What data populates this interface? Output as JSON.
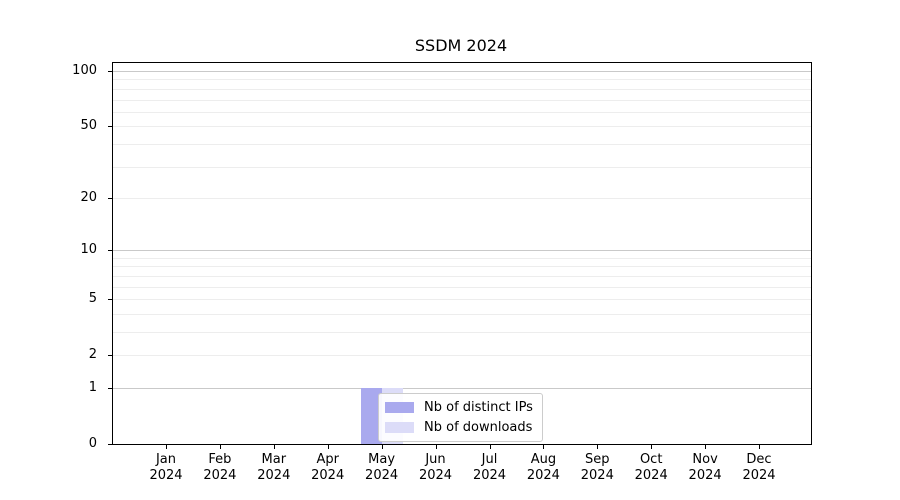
{
  "figure": {
    "title": "SSDM 2024"
  },
  "chart_data": {
    "type": "bar",
    "title": "SSDM 2024",
    "x_categories": [
      "Jan",
      "Feb",
      "Mar",
      "Apr",
      "May",
      "Jun",
      "Jul",
      "Aug",
      "Sep",
      "Oct",
      "Nov",
      "Dec"
    ],
    "x_year_line": "2024",
    "series": [
      {
        "name": "Nb of distinct IPs",
        "color": "#a9a9ee",
        "values": [
          0,
          0,
          0,
          0,
          1,
          0,
          0,
          0,
          0,
          0,
          0,
          0
        ]
      },
      {
        "name": "Nb of downloads",
        "color": "#dcdcf8",
        "values": [
          0,
          0,
          0,
          0,
          1,
          0,
          0,
          0,
          0,
          0,
          0,
          0
        ]
      }
    ],
    "y_axis": {
      "scale": "log10(1+y)",
      "tick_labels": [
        0,
        1,
        2,
        5,
        10,
        20,
        50,
        100
      ],
      "major_gridlines": [
        1,
        10,
        100
      ],
      "minor_gridlines": [
        2,
        3,
        4,
        5,
        6,
        7,
        8,
        9,
        20,
        30,
        40,
        50,
        60,
        70,
        80,
        90
      ],
      "ylim": [
        0,
        110
      ]
    },
    "legend": {
      "position": "lower center"
    },
    "grid": true,
    "background": "#ffffff"
  }
}
